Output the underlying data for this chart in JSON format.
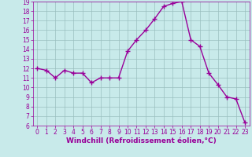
{
  "x": [
    0,
    1,
    2,
    3,
    4,
    5,
    6,
    7,
    8,
    9,
    10,
    11,
    12,
    13,
    14,
    15,
    16,
    17,
    18,
    19,
    20,
    21,
    22,
    23
  ],
  "y": [
    12,
    11.8,
    11.0,
    11.8,
    11.5,
    11.5,
    10.5,
    11.0,
    11.0,
    11.0,
    13.8,
    15.0,
    16.0,
    17.2,
    18.5,
    18.8,
    19.0,
    15.0,
    14.3,
    11.5,
    10.3,
    9.0,
    8.8,
    6.3
  ],
  "line_color": "#990099",
  "marker": "+",
  "marker_size": 4,
  "linewidth": 1.0,
  "background_color": "#c8eaea",
  "grid_color": "#9bbfbf",
  "xlabel": "Windchill (Refroidissement éolien,°C)",
  "xlabel_fontsize": 6.5,
  "xlabel_color": "#990099",
  "ylim": [
    6,
    19
  ],
  "xlim": [
    -0.5,
    23.5
  ],
  "yticks": [
    6,
    7,
    8,
    9,
    10,
    11,
    12,
    13,
    14,
    15,
    16,
    17,
    18,
    19
  ],
  "xticks": [
    0,
    1,
    2,
    3,
    4,
    5,
    6,
    7,
    8,
    9,
    10,
    11,
    12,
    13,
    14,
    15,
    16,
    17,
    18,
    19,
    20,
    21,
    22,
    23
  ],
  "tick_fontsize": 5.5,
  "tick_color": "#990099"
}
